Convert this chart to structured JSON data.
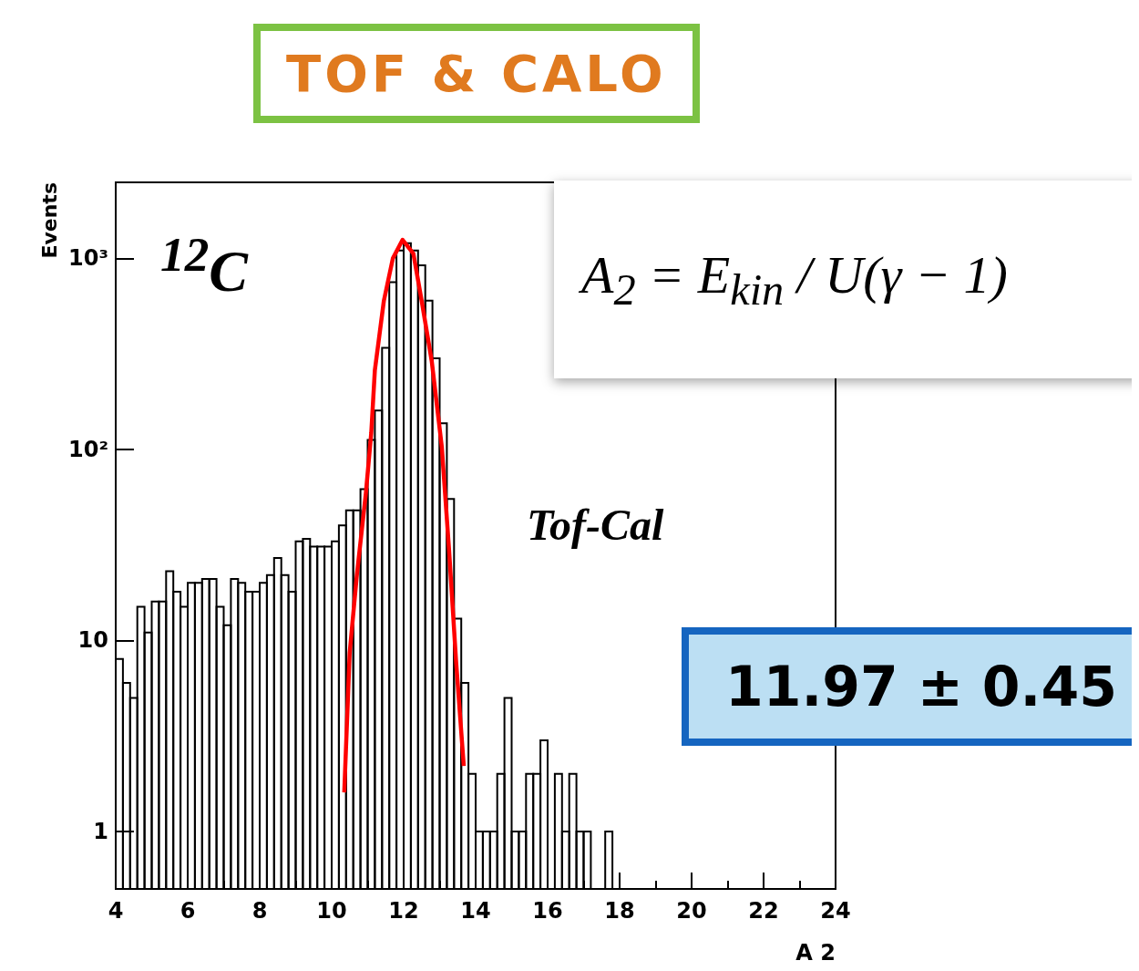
{
  "chart_data": {
    "type": "histogram",
    "title": "TOF & CALO",
    "xlabel": "A 2",
    "ylabel": "Events",
    "annotations": [
      "$^{12}$C",
      "Tof-Cal",
      "A$_{2}$ = E$_{kin}$ / U(γ − 1)",
      "11.97 ± 0.45"
    ],
    "bins": [
      4,
      4.2,
      4.4,
      4.6,
      4.8,
      5,
      5.2,
      5.4,
      5.6,
      5.8,
      6,
      6.2,
      6.4,
      6.6,
      6.8,
      7,
      7.2,
      7.4,
      7.6,
      7.8,
      8,
      8.2,
      8.4,
      8.6,
      8.8,
      9,
      9.2,
      9.4,
      9.6,
      9.8,
      10,
      10.2,
      10.4,
      10.6,
      10.8,
      11,
      11.2,
      11.4,
      11.6,
      11.8,
      12,
      12.2,
      12.4,
      12.6,
      12.8,
      13,
      13.2,
      13.4,
      13.6,
      13.8,
      14,
      14.2,
      14.4,
      14.6,
      14.8,
      15,
      15.2,
      15.4,
      15.6,
      15.8,
      16,
      16.2,
      16.4,
      16.6,
      16.8,
      17,
      17.2,
      17.4,
      17.6,
      17.8,
      18,
      18.2,
      18.4,
      18.6,
      18.8,
      19,
      19.2,
      19.4,
      19.6,
      19.8,
      20,
      20.2,
      20.4,
      20.6,
      20.8,
      21,
      21.2,
      21.4,
      21.6,
      21.8,
      22,
      22.2,
      22.4,
      22.6,
      22.8,
      23,
      23.2,
      23.4,
      23.6,
      23.8,
      24
    ],
    "series": [
      {
        "color": "#000000",
        "values": [
          8,
          6,
          5,
          15,
          11,
          16,
          16,
          23,
          18,
          15,
          20,
          20,
          21,
          21,
          15,
          12,
          21,
          20,
          18,
          18,
          20,
          22,
          27,
          22,
          18,
          33,
          34,
          31,
          31,
          31,
          33,
          40,
          48,
          48,
          62,
          112,
          160,
          340,
          750,
          1100,
          1200,
          1100,
          920,
          600,
          300,
          137,
          55,
          13,
          6,
          2,
          1,
          1,
          1,
          2,
          5,
          1,
          1,
          2,
          2,
          3,
          null,
          2,
          1,
          2,
          1,
          1,
          null,
          null,
          1,
          null,
          null,
          null,
          null,
          null,
          null,
          null,
          null,
          null,
          null,
          null,
          null,
          null,
          null,
          null,
          null,
          null,
          null,
          null,
          null,
          null,
          null,
          null,
          null,
          null,
          null,
          null,
          null,
          null,
          null,
          null
        ]
      },
      {
        "type": "line",
        "color": "#ff0000",
        "x": [
          10.35,
          10.5,
          10.7,
          10.95,
          11.1,
          11.2,
          11.45,
          11.7,
          11.97,
          12.27,
          12.5,
          12.78,
          13.06,
          13.26,
          13.46,
          13.67
        ],
        "values": [
          1.6,
          8.6,
          22,
          59,
          122,
          260,
          600,
          1000,
          1250,
          1060,
          600,
          290,
          103,
          30,
          7.6,
          2.2
        ]
      }
    ],
    "log": "y",
    "xlim": [
      4,
      24
    ],
    "xticks": [
      4,
      6,
      8,
      10,
      12,
      14,
      16,
      18,
      20,
      22,
      24
    ],
    "ylim": [
      0.5,
      2500
    ],
    "yticks": [
      1,
      10,
      {
        "value": 100,
        "label": "10²"
      },
      {
        "value": 1000,
        "label": "10³"
      }
    ],
    "grid": false
  }
}
